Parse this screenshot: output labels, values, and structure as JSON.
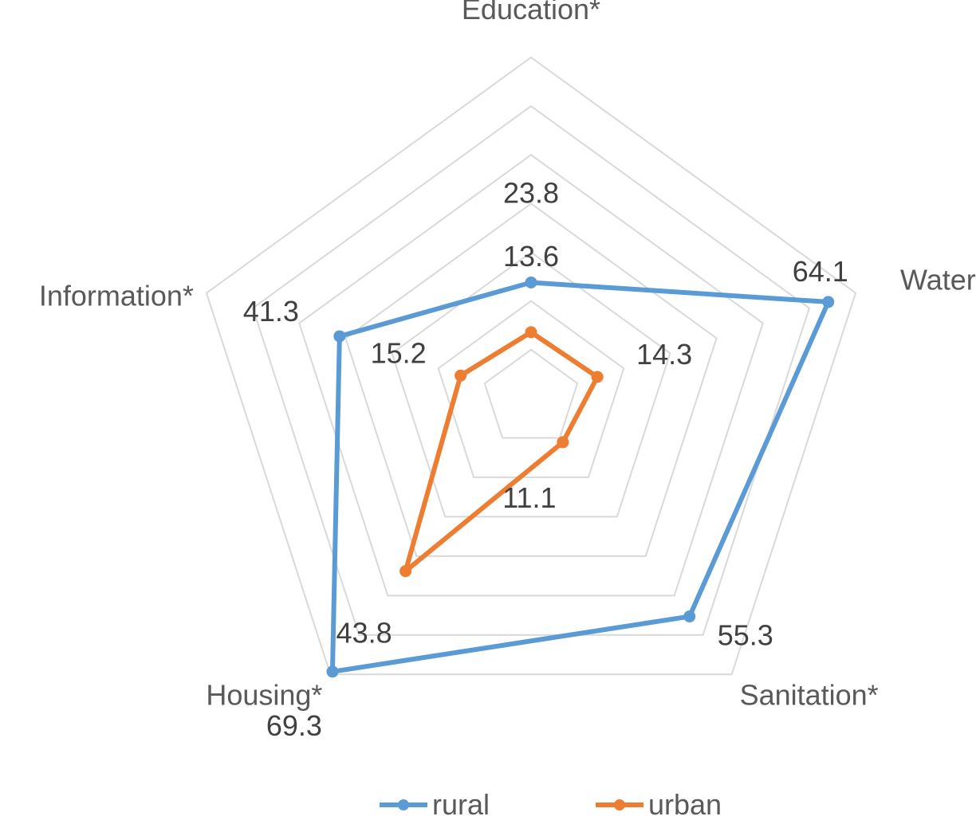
{
  "chart_data": {
    "type": "radar",
    "categories": [
      "Education*",
      "Water*",
      "Sanitation*",
      "Housing*",
      "Information*"
    ],
    "series": [
      {
        "name": "rural",
        "values": [
          23.8,
          64.1,
          55.3,
          69.3,
          41.3
        ],
        "color": "#5B9BD5"
      },
      {
        "name": "urban",
        "values": [
          13.6,
          14.3,
          11.1,
          43.8,
          15.2
        ],
        "color": "#ED7D31"
      }
    ],
    "rlim": [
      0,
      70
    ],
    "grid_rings": 7,
    "grid": true,
    "legend_position": "bottom"
  }
}
